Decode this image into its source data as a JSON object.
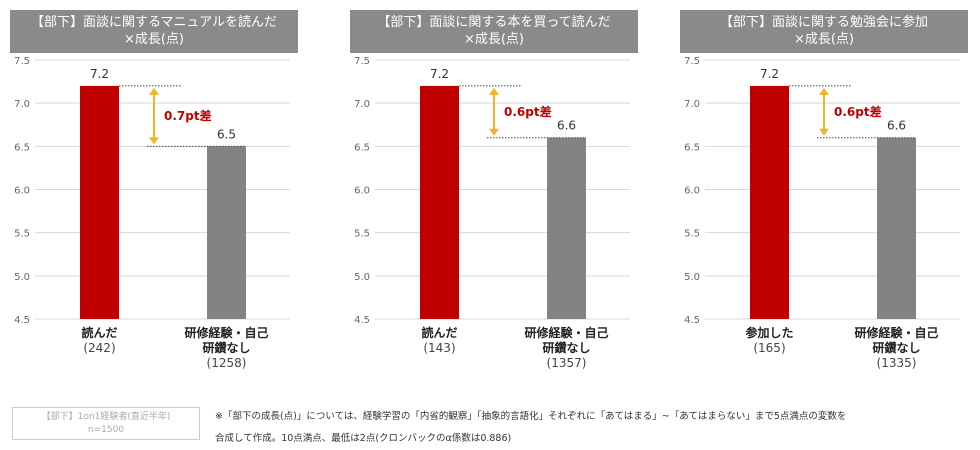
{
  "chart_data": [
    {
      "type": "bar",
      "title_lines": [
        "【部下】面談に関するマニュアルを読んだ",
        "×成長(点)"
      ],
      "ylim": [
        4.5,
        7.5
      ],
      "yticks": [
        "7.5",
        "7.0",
        "6.5",
        "6.0",
        "5.5",
        "5.0",
        "4.5"
      ],
      "categories": [
        {
          "lines": [
            "読んだ",
            "(242)"
          ]
        },
        {
          "lines": [
            "研修経験・自己",
            "研鑽なし",
            "(1258)"
          ]
        }
      ],
      "values": [
        7.2,
        6.5
      ],
      "value_labels": [
        "7.2",
        "6.5"
      ],
      "colors": [
        "#c00000",
        "#858285"
      ],
      "diff_label": "0.7pt差"
    },
    {
      "type": "bar",
      "title_lines": [
        "【部下】面談に関する本を買って読んだ",
        "×成長(点)"
      ],
      "ylim": [
        4.5,
        7.5
      ],
      "yticks": [
        "7.5",
        "7.0",
        "6.5",
        "6.0",
        "5.5",
        "5.0",
        "4.5"
      ],
      "categories": [
        {
          "lines": [
            "読んだ",
            "(143)"
          ]
        },
        {
          "lines": [
            "研修経験・自己",
            "研鑽なし",
            "(1357)"
          ]
        }
      ],
      "values": [
        7.2,
        6.6
      ],
      "value_labels": [
        "7.2",
        "6.6"
      ],
      "colors": [
        "#c00000",
        "#858285"
      ],
      "diff_label": "0.6pt差"
    },
    {
      "type": "bar",
      "title_lines": [
        "【部下】面談に関する勉強会に参加",
        "×成長(点)"
      ],
      "ylim": [
        4.5,
        7.5
      ],
      "yticks": [
        "7.5",
        "7.0",
        "6.5",
        "6.0",
        "5.5",
        "5.0",
        "4.5"
      ],
      "categories": [
        {
          "lines": [
            "参加した",
            "(165)"
          ]
        },
        {
          "lines": [
            "研修経験・自己",
            "研鑽なし",
            "(1335)"
          ]
        }
      ],
      "values": [
        7.2,
        6.6
      ],
      "value_labels": [
        "7.2",
        "6.6"
      ],
      "colors": [
        "#c00000",
        "#858285"
      ],
      "diff_label": "0.6pt差"
    }
  ],
  "sample": {
    "line1": "【部下】1on1経験者(直近半年)",
    "line2": "n=1500"
  },
  "footnote": {
    "line1": "※「部下の成長(点)」については、経験学習の「内省的観察」「抽象的言語化」それぞれに「あてはまる」~「あてはまらない」まで5点満点の変数を",
    "line2": "合成して作成。10点満点、最低は2点(クロンバックのα係数は0.886)"
  },
  "colors": {
    "arrow": "#f0b429",
    "diff_text": "#c00000",
    "grid": "#d8d8d8",
    "title_bg": "#8a8a8c"
  }
}
